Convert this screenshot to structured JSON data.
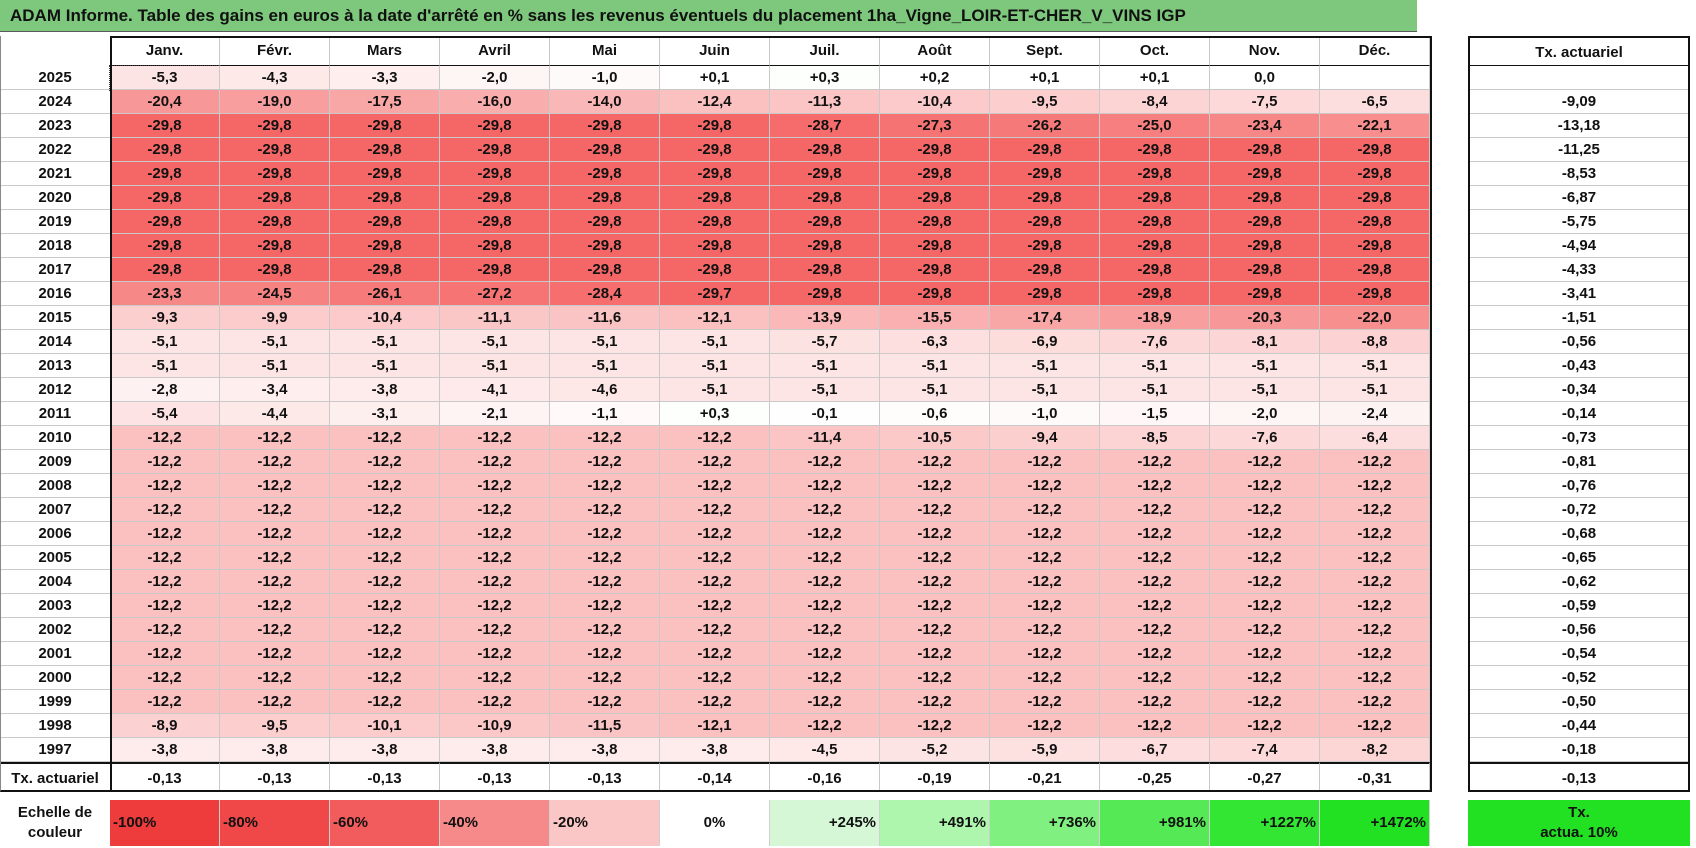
{
  "title": "ADAM Informe. Table des gains en euros à la date d'arrêté en % sans les revenus éventuels du placement 1ha_Vigne_LOIR-ET-CHER_V_VINS IGP",
  "chart_data": {
    "type": "heatmap",
    "title": "ADAM Informe. Table des gains en euros à la date d'arrêté en % sans les revenus éventuels du placement 1ha_Vigne_LOIR-ET-CHER_V_VINS IGP",
    "columns": [
      "Janv.",
      "Févr.",
      "Mars",
      "Avril",
      "Mai",
      "Juin",
      "Juil.",
      "Août",
      "Sept.",
      "Oct.",
      "Nov.",
      "Déc."
    ],
    "actuarial_header": "Tx. actuariel",
    "rows": [
      {
        "year": "2025",
        "values": [
          "-5,3",
          "-4,3",
          "-3,3",
          "-2,0",
          "-1,0",
          "+0,1",
          "+0,3",
          "+0,2",
          "+0,1",
          "+0,1",
          "0,0",
          ""
        ],
        "actuarial": ""
      },
      {
        "year": "2024",
        "values": [
          "-20,4",
          "-19,0",
          "-17,5",
          "-16,0",
          "-14,0",
          "-12,4",
          "-11,3",
          "-10,4",
          "-9,5",
          "-8,4",
          "-7,5",
          "-6,5"
        ],
        "actuarial": "-9,09"
      },
      {
        "year": "2023",
        "values": [
          "-29,8",
          "-29,8",
          "-29,8",
          "-29,8",
          "-29,8",
          "-29,8",
          "-28,7",
          "-27,3",
          "-26,2",
          "-25,0",
          "-23,4",
          "-22,1"
        ],
        "actuarial": "-13,18"
      },
      {
        "year": "2022",
        "values": [
          "-29,8",
          "-29,8",
          "-29,8",
          "-29,8",
          "-29,8",
          "-29,8",
          "-29,8",
          "-29,8",
          "-29,8",
          "-29,8",
          "-29,8",
          "-29,8"
        ],
        "actuarial": "-11,25"
      },
      {
        "year": "2021",
        "values": [
          "-29,8",
          "-29,8",
          "-29,8",
          "-29,8",
          "-29,8",
          "-29,8",
          "-29,8",
          "-29,8",
          "-29,8",
          "-29,8",
          "-29,8",
          "-29,8"
        ],
        "actuarial": "-8,53"
      },
      {
        "year": "2020",
        "values": [
          "-29,8",
          "-29,8",
          "-29,8",
          "-29,8",
          "-29,8",
          "-29,8",
          "-29,8",
          "-29,8",
          "-29,8",
          "-29,8",
          "-29,8",
          "-29,8"
        ],
        "actuarial": "-6,87"
      },
      {
        "year": "2019",
        "values": [
          "-29,8",
          "-29,8",
          "-29,8",
          "-29,8",
          "-29,8",
          "-29,8",
          "-29,8",
          "-29,8",
          "-29,8",
          "-29,8",
          "-29,8",
          "-29,8"
        ],
        "actuarial": "-5,75"
      },
      {
        "year": "2018",
        "values": [
          "-29,8",
          "-29,8",
          "-29,8",
          "-29,8",
          "-29,8",
          "-29,8",
          "-29,8",
          "-29,8",
          "-29,8",
          "-29,8",
          "-29,8",
          "-29,8"
        ],
        "actuarial": "-4,94"
      },
      {
        "year": "2017",
        "values": [
          "-29,8",
          "-29,8",
          "-29,8",
          "-29,8",
          "-29,8",
          "-29,8",
          "-29,8",
          "-29,8",
          "-29,8",
          "-29,8",
          "-29,8",
          "-29,8"
        ],
        "actuarial": "-4,33"
      },
      {
        "year": "2016",
        "values": [
          "-23,3",
          "-24,5",
          "-26,1",
          "-27,2",
          "-28,4",
          "-29,7",
          "-29,8",
          "-29,8",
          "-29,8",
          "-29,8",
          "-29,8",
          "-29,8"
        ],
        "actuarial": "-3,41"
      },
      {
        "year": "2015",
        "values": [
          "-9,3",
          "-9,9",
          "-10,4",
          "-11,1",
          "-11,6",
          "-12,1",
          "-13,9",
          "-15,5",
          "-17,4",
          "-18,9",
          "-20,3",
          "-22,0"
        ],
        "actuarial": "-1,51"
      },
      {
        "year": "2014",
        "values": [
          "-5,1",
          "-5,1",
          "-5,1",
          "-5,1",
          "-5,1",
          "-5,1",
          "-5,7",
          "-6,3",
          "-6,9",
          "-7,6",
          "-8,1",
          "-8,8"
        ],
        "actuarial": "-0,56"
      },
      {
        "year": "2013",
        "values": [
          "-5,1",
          "-5,1",
          "-5,1",
          "-5,1",
          "-5,1",
          "-5,1",
          "-5,1",
          "-5,1",
          "-5,1",
          "-5,1",
          "-5,1",
          "-5,1"
        ],
        "actuarial": "-0,43"
      },
      {
        "year": "2012",
        "values": [
          "-2,8",
          "-3,4",
          "-3,8",
          "-4,1",
          "-4,6",
          "-5,1",
          "-5,1",
          "-5,1",
          "-5,1",
          "-5,1",
          "-5,1",
          "-5,1"
        ],
        "actuarial": "-0,34"
      },
      {
        "year": "2011",
        "values": [
          "-5,4",
          "-4,4",
          "-3,1",
          "-2,1",
          "-1,1",
          "+0,3",
          "-0,1",
          "-0,6",
          "-1,0",
          "-1,5",
          "-2,0",
          "-2,4"
        ],
        "actuarial": "-0,14"
      },
      {
        "year": "2010",
        "values": [
          "-12,2",
          "-12,2",
          "-12,2",
          "-12,2",
          "-12,2",
          "-12,2",
          "-11,4",
          "-10,5",
          "-9,4",
          "-8,5",
          "-7,6",
          "-6,4"
        ],
        "actuarial": "-0,73"
      },
      {
        "year": "2009",
        "values": [
          "-12,2",
          "-12,2",
          "-12,2",
          "-12,2",
          "-12,2",
          "-12,2",
          "-12,2",
          "-12,2",
          "-12,2",
          "-12,2",
          "-12,2",
          "-12,2"
        ],
        "actuarial": "-0,81"
      },
      {
        "year": "2008",
        "values": [
          "-12,2",
          "-12,2",
          "-12,2",
          "-12,2",
          "-12,2",
          "-12,2",
          "-12,2",
          "-12,2",
          "-12,2",
          "-12,2",
          "-12,2",
          "-12,2"
        ],
        "actuarial": "-0,76"
      },
      {
        "year": "2007",
        "values": [
          "-12,2",
          "-12,2",
          "-12,2",
          "-12,2",
          "-12,2",
          "-12,2",
          "-12,2",
          "-12,2",
          "-12,2",
          "-12,2",
          "-12,2",
          "-12,2"
        ],
        "actuarial": "-0,72"
      },
      {
        "year": "2006",
        "values": [
          "-12,2",
          "-12,2",
          "-12,2",
          "-12,2",
          "-12,2",
          "-12,2",
          "-12,2",
          "-12,2",
          "-12,2",
          "-12,2",
          "-12,2",
          "-12,2"
        ],
        "actuarial": "-0,68"
      },
      {
        "year": "2005",
        "values": [
          "-12,2",
          "-12,2",
          "-12,2",
          "-12,2",
          "-12,2",
          "-12,2",
          "-12,2",
          "-12,2",
          "-12,2",
          "-12,2",
          "-12,2",
          "-12,2"
        ],
        "actuarial": "-0,65"
      },
      {
        "year": "2004",
        "values": [
          "-12,2",
          "-12,2",
          "-12,2",
          "-12,2",
          "-12,2",
          "-12,2",
          "-12,2",
          "-12,2",
          "-12,2",
          "-12,2",
          "-12,2",
          "-12,2"
        ],
        "actuarial": "-0,62"
      },
      {
        "year": "2003",
        "values": [
          "-12,2",
          "-12,2",
          "-12,2",
          "-12,2",
          "-12,2",
          "-12,2",
          "-12,2",
          "-12,2",
          "-12,2",
          "-12,2",
          "-12,2",
          "-12,2"
        ],
        "actuarial": "-0,59"
      },
      {
        "year": "2002",
        "values": [
          "-12,2",
          "-12,2",
          "-12,2",
          "-12,2",
          "-12,2",
          "-12,2",
          "-12,2",
          "-12,2",
          "-12,2",
          "-12,2",
          "-12,2",
          "-12,2"
        ],
        "actuarial": "-0,56"
      },
      {
        "year": "2001",
        "values": [
          "-12,2",
          "-12,2",
          "-12,2",
          "-12,2",
          "-12,2",
          "-12,2",
          "-12,2",
          "-12,2",
          "-12,2",
          "-12,2",
          "-12,2",
          "-12,2"
        ],
        "actuarial": "-0,54"
      },
      {
        "year": "2000",
        "values": [
          "-12,2",
          "-12,2",
          "-12,2",
          "-12,2",
          "-12,2",
          "-12,2",
          "-12,2",
          "-12,2",
          "-12,2",
          "-12,2",
          "-12,2",
          "-12,2"
        ],
        "actuarial": "-0,52"
      },
      {
        "year": "1999",
        "values": [
          "-12,2",
          "-12,2",
          "-12,2",
          "-12,2",
          "-12,2",
          "-12,2",
          "-12,2",
          "-12,2",
          "-12,2",
          "-12,2",
          "-12,2",
          "-12,2"
        ],
        "actuarial": "-0,50"
      },
      {
        "year": "1998",
        "values": [
          "-8,9",
          "-9,5",
          "-10,1",
          "-10,9",
          "-11,5",
          "-12,1",
          "-12,2",
          "-12,2",
          "-12,2",
          "-12,2",
          "-12,2",
          "-12,2"
        ],
        "actuarial": "-0,44"
      },
      {
        "year": "1997",
        "values": [
          "-3,8",
          "-3,8",
          "-3,8",
          "-3,8",
          "-3,8",
          "-3,8",
          "-4,5",
          "-5,2",
          "-5,9",
          "-6,7",
          "-7,4",
          "-8,2"
        ],
        "actuarial": "-0,18"
      }
    ],
    "actuarial_row": {
      "label": "Tx. actuariel",
      "values": [
        "-0,13",
        "-0,13",
        "-0,13",
        "-0,13",
        "-0,13",
        "-0,14",
        "-0,16",
        "-0,19",
        "-0,21",
        "-0,25",
        "-0,27",
        "-0,31"
      ],
      "total": "-0,13"
    },
    "color_scale": {
      "label_line1": "Echelle de",
      "label_line2": "couleur",
      "stops": [
        {
          "label": "-100%",
          "color": "#ee3b3b"
        },
        {
          "label": "-80%",
          "color": "#f04848"
        },
        {
          "label": "-60%",
          "color": "#f35c5c"
        },
        {
          "label": "-40%",
          "color": "#f68a8a"
        },
        {
          "label": "-20%",
          "color": "#fbc6c6"
        },
        {
          "label": "0%",
          "color": "#ffffff"
        },
        {
          "label": "+245%",
          "color": "#d6f7d6"
        },
        {
          "label": "+491%",
          "color": "#aef5ae"
        },
        {
          "label": "+736%",
          "color": "#80f080"
        },
        {
          "label": "+981%",
          "color": "#55ea55"
        },
        {
          "label": "+1227%",
          "color": "#33e633"
        },
        {
          "label": "+1472%",
          "color": "#22e022"
        }
      ],
      "actuarial_box_line1": "Tx.",
      "actuarial_box_line2": "actua. 10%",
      "actuarial_box_color": "#22e022"
    }
  }
}
